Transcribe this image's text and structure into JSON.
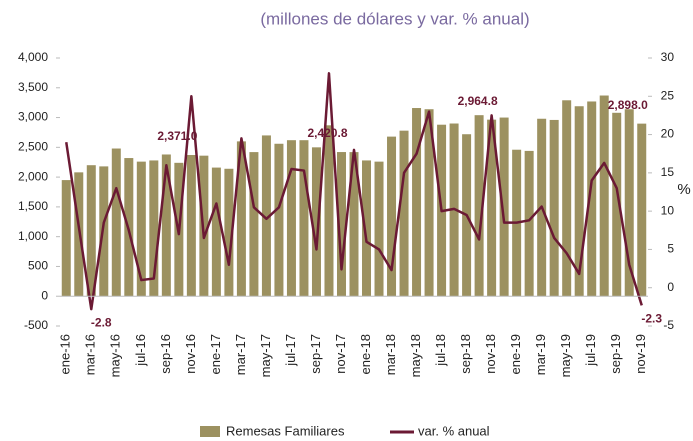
{
  "chart_data": {
    "type": "bar-line",
    "title": "(millones  de dólares y var. % anual)",
    "y2_label": "%",
    "categories": [
      "ene-16",
      null,
      "mar-16",
      null,
      "may-16",
      null,
      "jul-16",
      null,
      "sep-16",
      null,
      "nov-16",
      null,
      "ene-17",
      null,
      "mar-17",
      null,
      "may-17",
      null,
      "jul-17",
      null,
      "sep-17",
      null,
      "nov-17",
      null,
      "ene-18",
      null,
      "mar-18",
      null,
      "may-18",
      null,
      "jul-18",
      null,
      "sep-18",
      null,
      "nov-18",
      null,
      "ene-19",
      null,
      "mar-19",
      null,
      "may-19",
      null,
      "jul-19",
      null,
      "sep-19",
      null,
      "nov-19"
    ],
    "series": [
      {
        "name": "Remesas Familiares",
        "type": "bar",
        "color": "#9c9160",
        "values": [
          1950,
          2080,
          2200,
          2180,
          2480,
          2320,
          2260,
          2280,
          2380,
          2240,
          2371.0,
          2360,
          2160,
          2140,
          2600,
          2420,
          2700,
          2560,
          2620,
          2620,
          2500,
          2870,
          2420.8,
          2420,
          2280,
          2260,
          2680,
          2780,
          3160,
          3140,
          2880,
          2900,
          2720,
          3040,
          2964.8,
          3000,
          2460,
          2440,
          2980,
          2960,
          3290,
          3190,
          3270,
          3370,
          3080,
          3140,
          2898.0
        ],
        "value_labels": [
          null,
          null,
          null,
          null,
          null,
          null,
          null,
          null,
          null,
          null,
          "2,371.0",
          null,
          null,
          null,
          null,
          null,
          null,
          null,
          null,
          null,
          null,
          null,
          "2,420.8",
          null,
          null,
          null,
          null,
          null,
          null,
          null,
          null,
          null,
          null,
          null,
          "2,964.8",
          null,
          null,
          null,
          null,
          null,
          null,
          null,
          null,
          null,
          null,
          null,
          "2,898.0"
        ]
      },
      {
        "name": "var. % anual",
        "type": "line",
        "axis": "y2",
        "color": "#6b1a34",
        "values": [
          19,
          8,
          -2.8,
          8.5,
          13,
          7.5,
          1,
          1.2,
          16,
          7,
          25,
          6.5,
          11,
          3,
          19.5,
          10.5,
          9,
          10.5,
          15.5,
          15.3,
          5,
          28,
          2.4,
          18,
          6,
          5,
          2.3,
          15,
          17.5,
          23,
          10,
          10.3,
          9.5,
          6.3,
          22.5,
          8.5,
          8.5,
          8.8,
          10.6,
          6.5,
          4.5,
          1.8,
          14,
          16.3,
          13,
          3,
          -2.3
        ],
        "value_labels": [
          null,
          null,
          "-2.8",
          null,
          null,
          null,
          null,
          null,
          null,
          null,
          null,
          null,
          null,
          null,
          null,
          null,
          null,
          null,
          null,
          null,
          null,
          null,
          null,
          null,
          null,
          null,
          null,
          null,
          null,
          null,
          null,
          null,
          null,
          null,
          null,
          null,
          null,
          null,
          null,
          null,
          null,
          null,
          null,
          null,
          null,
          null,
          "-2.3"
        ]
      }
    ],
    "ylim": [
      -500,
      4000
    ],
    "yticks": [
      -500,
      0,
      500,
      {
        "value": 1000,
        "label": "1,000"
      },
      {
        "value": 1500,
        "label": "1,500"
      },
      {
        "value": 2000,
        "label": "2,000"
      },
      {
        "value": 2500,
        "label": "2,500"
      },
      {
        "value": 3000,
        "label": "3,000"
      },
      {
        "value": 3500,
        "label": "3,500"
      },
      {
        "value": 4000,
        "label": "4,000"
      }
    ],
    "y2lim": [
      -5,
      30
    ],
    "y2ticks": [
      -5,
      0,
      5,
      10,
      15,
      20,
      25,
      30
    ],
    "legend": "bottom"
  }
}
